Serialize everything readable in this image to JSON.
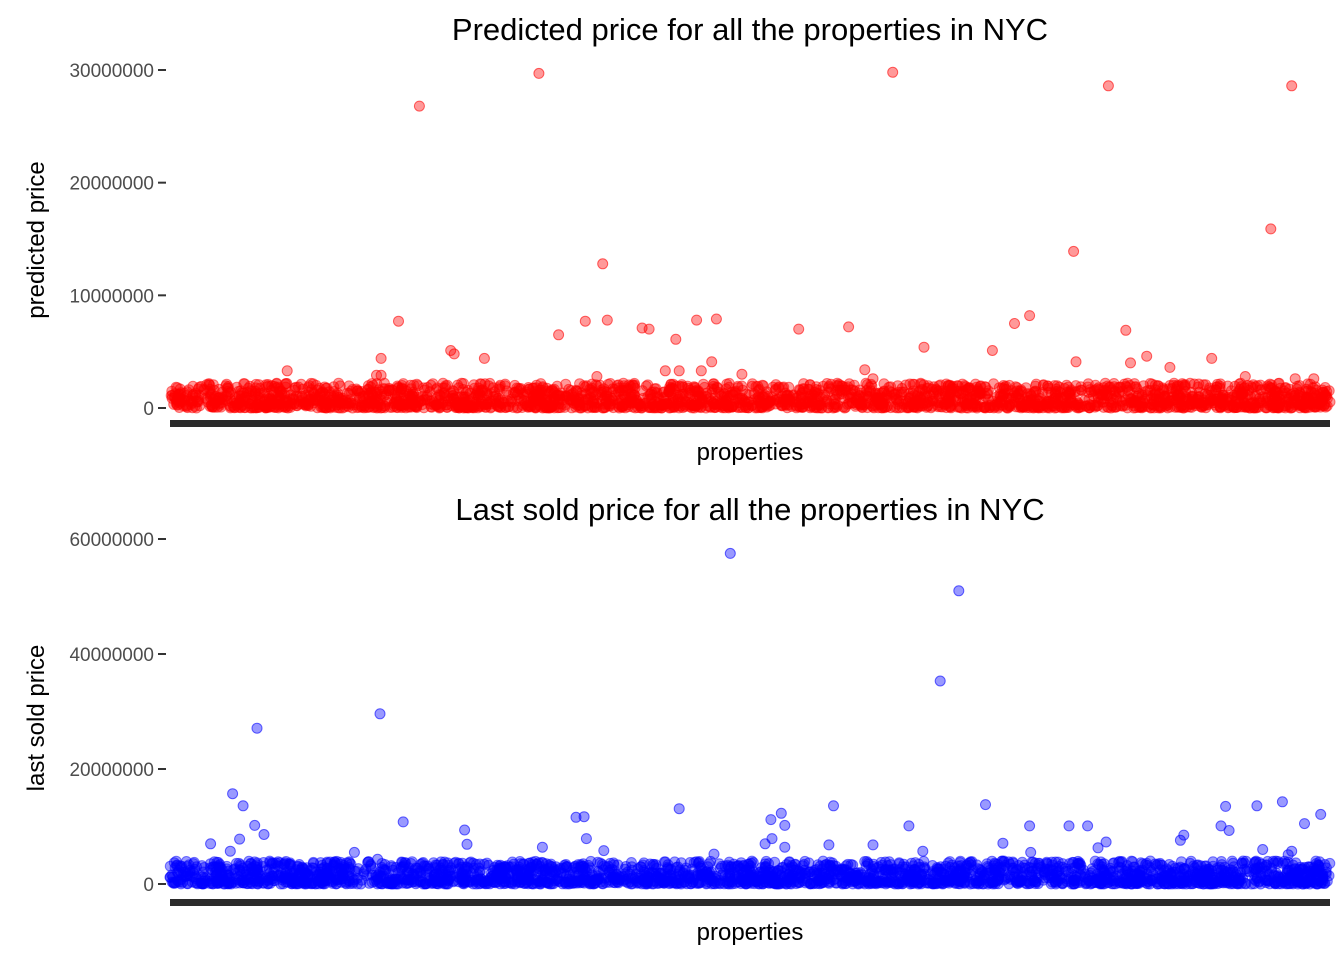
{
  "chart_data": [
    {
      "type": "scatter",
      "title": "Predicted price for all the properties in NYC",
      "xlabel": "properties",
      "ylabel": "predicted price",
      "ylim": [
        0,
        30000000
      ],
      "yticks": [
        0,
        10000000,
        20000000,
        30000000
      ],
      "ytick_labels": [
        "0",
        "10000000",
        "20000000",
        "30000000"
      ],
      "grid": false,
      "color": "#ff0000",
      "bulk_range": [
        0,
        2200000
      ],
      "series": [
        {
          "values_pairs": [
            [
              0.215,
              26800000
            ],
            [
              0.318,
              29700000
            ],
            [
              0.623,
              29800000
            ],
            [
              0.809,
              28600000
            ],
            [
              0.967,
              28600000
            ],
            [
              0.949,
              15900000
            ],
            [
              0.373,
              12800000
            ],
            [
              0.779,
              13900000
            ],
            [
              0.197,
              7700000
            ],
            [
              0.358,
              7700000
            ],
            [
              0.377,
              7800000
            ],
            [
              0.407,
              7100000
            ],
            [
              0.413,
              7000000
            ],
            [
              0.454,
              7800000
            ],
            [
              0.471,
              7900000
            ],
            [
              0.542,
              7000000
            ],
            [
              0.585,
              7200000
            ],
            [
              0.728,
              7500000
            ],
            [
              0.741,
              8200000
            ],
            [
              0.824,
              6900000
            ],
            [
              0.335,
              6500000
            ],
            [
              0.436,
              6100000
            ],
            [
              0.242,
              5100000
            ],
            [
              0.245,
              4800000
            ],
            [
              0.65,
              5400000
            ],
            [
              0.709,
              5100000
            ],
            [
              0.182,
              4400000
            ],
            [
              0.271,
              4400000
            ],
            [
              0.467,
              4100000
            ],
            [
              0.781,
              4100000
            ],
            [
              0.828,
              4000000
            ],
            [
              0.842,
              4600000
            ],
            [
              0.862,
              3600000
            ],
            [
              0.898,
              4400000
            ],
            [
              0.101,
              3300000
            ],
            [
              0.178,
              2900000
            ],
            [
              0.182,
              2900000
            ],
            [
              0.368,
              2800000
            ],
            [
              0.427,
              3300000
            ],
            [
              0.439,
              3300000
            ],
            [
              0.458,
              3300000
            ],
            [
              0.493,
              3000000
            ],
            [
              0.599,
              3400000
            ],
            [
              0.606,
              2600000
            ],
            [
              0.927,
              2800000
            ],
            [
              0.97,
              2600000
            ],
            [
              0.986,
              2600000
            ]
          ]
        }
      ]
    },
    {
      "type": "scatter",
      "title": "Last sold price for all the properties in NYC",
      "xlabel": "properties",
      "ylabel": "last sold price",
      "ylim": [
        0,
        60000000
      ],
      "yticks": [
        0,
        20000000,
        40000000,
        60000000
      ],
      "ytick_labels": [
        "0",
        "20000000",
        "40000000",
        "60000000"
      ],
      "grid": false,
      "color": "#0000ff",
      "bulk_range": [
        0,
        4000000
      ],
      "series": [
        {
          "values_pairs": [
            [
              0.483,
              57500000
            ],
            [
              0.68,
              51000000
            ],
            [
              0.664,
              35300000
            ],
            [
              0.181,
              29600000
            ],
            [
              0.075,
              27100000
            ],
            [
              0.054,
              15700000
            ],
            [
              0.063,
              13600000
            ],
            [
              0.073,
              10200000
            ],
            [
              0.201,
              10800000
            ],
            [
              0.35,
              11600000
            ],
            [
              0.357,
              11700000
            ],
            [
              0.439,
              13100000
            ],
            [
              0.518,
              11200000
            ],
            [
              0.527,
              12300000
            ],
            [
              0.53,
              10200000
            ],
            [
              0.572,
              13600000
            ],
            [
              0.637,
              10100000
            ],
            [
              0.703,
              13800000
            ],
            [
              0.741,
              10100000
            ],
            [
              0.775,
              10100000
            ],
            [
              0.791,
              10100000
            ],
            [
              0.906,
              10100000
            ],
            [
              0.91,
              13500000
            ],
            [
              0.913,
              9300000
            ],
            [
              0.937,
              13600000
            ],
            [
              0.959,
              14300000
            ],
            [
              0.978,
              10500000
            ],
            [
              0.992,
              12100000
            ],
            [
              0.254,
              9400000
            ],
            [
              0.035,
              7000000
            ],
            [
              0.06,
              7800000
            ],
            [
              0.081,
              8600000
            ],
            [
              0.359,
              7900000
            ],
            [
              0.513,
              7000000
            ],
            [
              0.519,
              7900000
            ],
            [
              0.807,
              7300000
            ],
            [
              0.871,
              7600000
            ],
            [
              0.874,
              8500000
            ],
            [
              0.052,
              5700000
            ],
            [
              0.159,
              5500000
            ],
            [
              0.321,
              6400000
            ],
            [
              0.374,
              5800000
            ],
            [
              0.53,
              6400000
            ],
            [
              0.568,
              6800000
            ],
            [
              0.606,
              6800000
            ],
            [
              0.718,
              7100000
            ],
            [
              0.8,
              6300000
            ],
            [
              0.942,
              6000000
            ],
            [
              0.967,
              5700000
            ],
            [
              0.964,
              5100000
            ],
            [
              0.256,
              6900000
            ],
            [
              0.179,
              4300000
            ],
            [
              0.469,
              5200000
            ],
            [
              0.649,
              5700000
            ],
            [
              0.742,
              5500000
            ]
          ]
        }
      ]
    }
  ]
}
